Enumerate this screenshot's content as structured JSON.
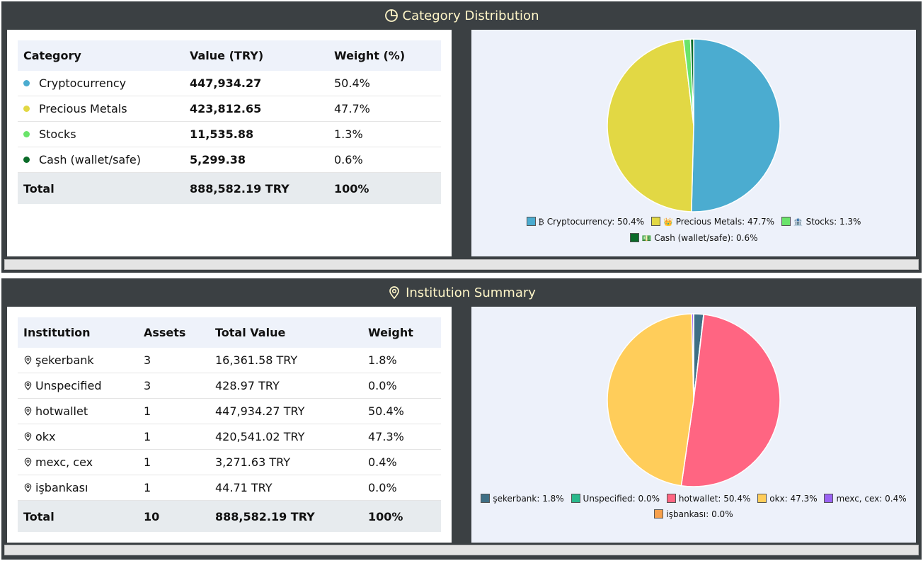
{
  "category_panel": {
    "title": "Category Distribution",
    "table": {
      "headers": [
        "Category",
        "Value (TRY)",
        "Weight (%)"
      ],
      "rows": [
        {
          "name": "Cryptocurrency",
          "value": "447,934.27",
          "weight": "50.4%",
          "color": "#4bacd0"
        },
        {
          "name": "Precious Metals",
          "value": "423,812.65",
          "weight": "47.7%",
          "color": "#e2d844"
        },
        {
          "name": "Stocks",
          "value": "11,535.88",
          "weight": "1.3%",
          "color": "#6ae46a"
        },
        {
          "name": "Cash (wallet/safe)",
          "value": "5,299.38",
          "weight": "0.6%",
          "color": "#0b6b29"
        }
      ],
      "total": {
        "label": "Total",
        "value": "888,582.19 TRY",
        "weight": "100%"
      }
    },
    "legend": [
      {
        "emoji": "₿",
        "text": "Cryptocurrency: 50.4%",
        "color": "#4bacd0"
      },
      {
        "emoji": "👑",
        "text": "Precious Metals: 47.7%",
        "color": "#e2d844"
      },
      {
        "emoji": "🏦",
        "text": "Stocks: 1.3%",
        "color": "#6ae46a"
      },
      {
        "emoji": "💵",
        "text": "Cash (wallet/safe): 0.6%",
        "color": "#0b6b29"
      }
    ]
  },
  "institution_panel": {
    "title": "Institution Summary",
    "table": {
      "headers": [
        "Institution",
        "Assets",
        "Total Value",
        "Weight"
      ],
      "rows": [
        {
          "name": "şekerbank",
          "assets": "3",
          "value": "16,361.58 TRY",
          "weight": "1.8%",
          "color": "#3e6f85"
        },
        {
          "name": "Unspecified",
          "assets": "3",
          "value": "428.97 TRY",
          "weight": "0.0%",
          "color": "#29b98c"
        },
        {
          "name": "hotwallet",
          "assets": "1",
          "value": "447,934.27 TRY",
          "weight": "50.4%",
          "color": "#ff6582"
        },
        {
          "name": "okx",
          "assets": "1",
          "value": "420,541.02 TRY",
          "weight": "47.3%",
          "color": "#ffcd5a"
        },
        {
          "name": "mexc, cex",
          "assets": "1",
          "value": "3,271.63 TRY",
          "weight": "0.4%",
          "color": "#9b63f3"
        },
        {
          "name": "işbankası",
          "assets": "1",
          "value": "44.71 TRY",
          "weight": "0.0%",
          "color": "#f7a04b"
        }
      ],
      "total": {
        "label": "Total",
        "assets": "10",
        "value": "888,582.19 TRY",
        "weight": "100%"
      }
    },
    "legend": [
      {
        "text": "şekerbank: 1.8%",
        "color": "#3e6f85"
      },
      {
        "text": "Unspecified: 0.0%",
        "color": "#29b98c"
      },
      {
        "text": "hotwallet: 50.4%",
        "color": "#ff6582"
      },
      {
        "text": "okx: 47.3%",
        "color": "#ffcd5a"
      },
      {
        "text": "mexc, cex: 0.4%",
        "color": "#9b63f3"
      },
      {
        "text": "işbankası: 0.0%",
        "color": "#f7a04b"
      }
    ]
  },
  "chart_data": [
    {
      "type": "pie",
      "categories": [
        "Cryptocurrency",
        "Precious Metals",
        "Stocks",
        "Cash (wallet/safe)"
      ],
      "values": [
        447934.27,
        423812.65,
        11535.88,
        5299.38
      ],
      "colors": [
        "#4bacd0",
        "#e2d844",
        "#6ae46a",
        "#0b6b29"
      ],
      "legend_position": "bottom"
    },
    {
      "type": "pie",
      "categories": [
        "şekerbank",
        "Unspecified",
        "hotwallet",
        "okx",
        "mexc, cex",
        "işbankası"
      ],
      "values": [
        16361.58,
        428.97,
        447934.27,
        420541.02,
        3271.63,
        44.71
      ],
      "colors": [
        "#3e6f85",
        "#29b98c",
        "#ff6582",
        "#ffcd5a",
        "#9b63f3",
        "#f7a04b"
      ],
      "legend_position": "bottom"
    }
  ]
}
